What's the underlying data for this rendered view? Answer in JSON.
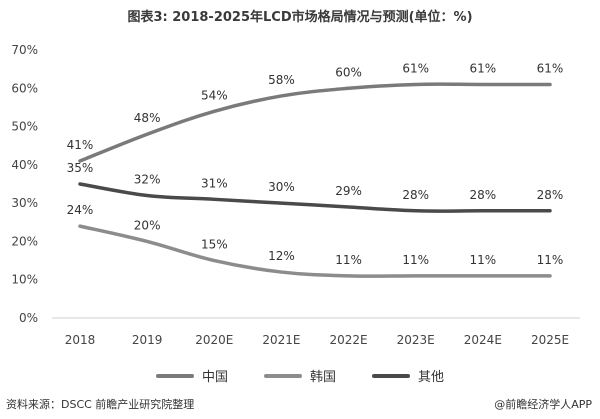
{
  "title": "图表3: 2018-2025年LCD市场格局情况与预测(单位：%)",
  "source": "资料来源：DSCC 前瞻产业研究院整理",
  "brand": "@前瞻经济学人APP",
  "chart_data": {
    "type": "line",
    "title": "图表3: 2018-2025年LCD市场格局情况与预测(单位：%)",
    "categories": [
      "2018",
      "2019",
      "2020E",
      "2021E",
      "2022E",
      "2023E",
      "2024E",
      "2025E"
    ],
    "ylim": [
      0,
      70
    ],
    "yticks": [
      "0%",
      "10%",
      "20%",
      "30%",
      "40%",
      "50%",
      "60%",
      "70%"
    ],
    "grid": false,
    "legend_position": "bottom",
    "series": [
      {
        "name": "中国",
        "values": [
          41,
          48,
          54,
          58,
          60,
          61,
          61,
          61
        ],
        "labels": [
          "41%",
          "48%",
          "54%",
          "58%",
          "60%",
          "61%",
          "61%",
          "61%"
        ],
        "color": "#7a7a7a"
      },
      {
        "name": "韩国",
        "values": [
          24,
          20,
          15,
          12,
          11,
          11,
          11,
          11
        ],
        "labels": [
          "24%",
          "20%",
          "15%",
          "12%",
          "11%",
          "11%",
          "11%",
          "11%"
        ],
        "color": "#8c8c8c"
      },
      {
        "name": "其他",
        "values": [
          35,
          32,
          31,
          30,
          29,
          28,
          28,
          28
        ],
        "labels": [
          "35%",
          "32%",
          "31%",
          "30%",
          "29%",
          "28%",
          "28%",
          "28%"
        ],
        "color": "#4a4a4a"
      }
    ]
  }
}
